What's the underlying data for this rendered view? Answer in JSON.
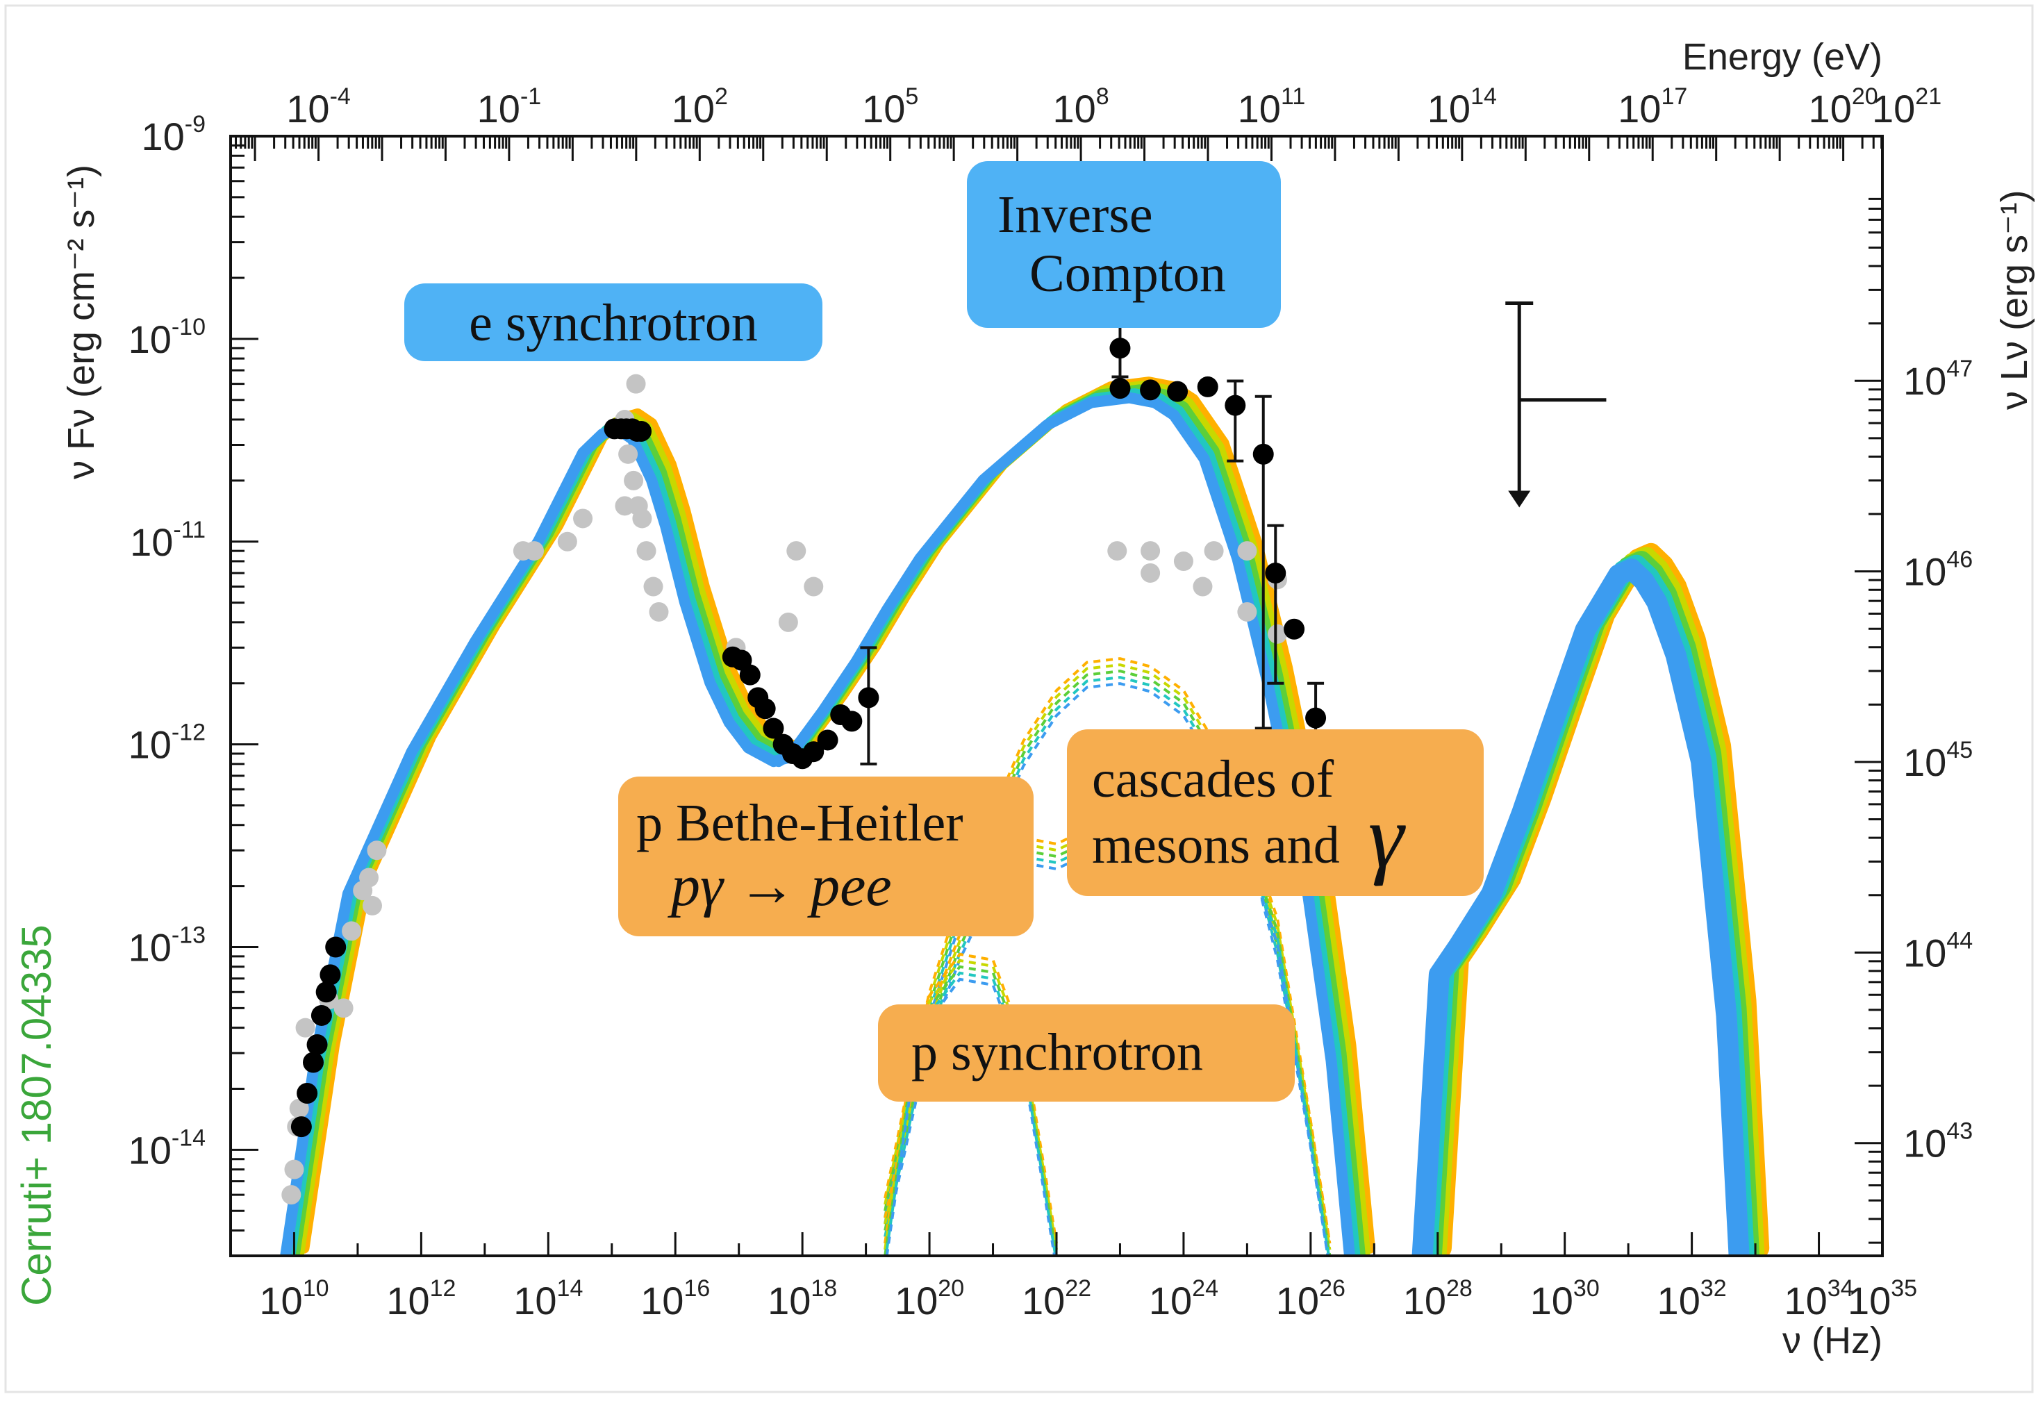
{
  "chart_data": {
    "type": "line",
    "x_scale": "log",
    "y_scale": "log",
    "xlim": [
      1000000000.0,
      1e+35
    ],
    "ylim": [
      3e-15,
      1e-09
    ],
    "xlabel": "ν (Hz)",
    "ylabel": "ν Fν (erg cm⁻² s⁻¹)",
    "top_axis_label": "Energy (eV)",
    "right_axis_label": "ν Lν (erg s⁻¹)",
    "x_ticks": [
      {
        "base": "10",
        "exp": "10",
        "value": 10000000000.0
      },
      {
        "base": "10",
        "exp": "12",
        "value": 1000000000000.0
      },
      {
        "base": "10",
        "exp": "14",
        "value": 100000000000000.0
      },
      {
        "base": "10",
        "exp": "16",
        "value": 1e+16
      },
      {
        "base": "10",
        "exp": "18",
        "value": 1e+18
      },
      {
        "base": "10",
        "exp": "20",
        "value": 1e+20
      },
      {
        "base": "10",
        "exp": "22",
        "value": 1e+22
      },
      {
        "base": "10",
        "exp": "24",
        "value": 1e+24
      },
      {
        "base": "10",
        "exp": "26",
        "value": 1e+26
      },
      {
        "base": "10",
        "exp": "28",
        "value": 1e+28
      },
      {
        "base": "10",
        "exp": "30",
        "value": 1e+30
      },
      {
        "base": "10",
        "exp": "32",
        "value": 1e+32
      },
      {
        "base": "10",
        "exp": "34",
        "value": 1e+34
      },
      {
        "base": "10",
        "exp": "35",
        "value": 1e+35
      }
    ],
    "y_ticks": [
      {
        "base": "10",
        "exp": "-14",
        "value": 1e-14
      },
      {
        "base": "10",
        "exp": "-13",
        "value": 1e-13
      },
      {
        "base": "10",
        "exp": "-12",
        "value": 1e-12
      },
      {
        "base": "10",
        "exp": "-11",
        "value": 1e-11
      },
      {
        "base": "10",
        "exp": "-10",
        "value": 1e-10
      },
      {
        "base": "10",
        "exp": "-9",
        "value": 1e-09
      }
    ],
    "top_ticks": [
      {
        "base": "10",
        "exp": "-4",
        "value": 0.0001
      },
      {
        "base": "10",
        "exp": "-1",
        "value": 0.1
      },
      {
        "base": "10",
        "exp": "2",
        "value": 100.0
      },
      {
        "base": "10",
        "exp": "5",
        "value": 100000.0
      },
      {
        "base": "10",
        "exp": "8",
        "value": 100000000.0
      },
      {
        "base": "10",
        "exp": "11",
        "value": 100000000000.0
      },
      {
        "base": "10",
        "exp": "14",
        "value": 100000000000000.0
      },
      {
        "base": "10",
        "exp": "17",
        "value": 1e+17
      },
      {
        "base": "10",
        "exp": "20",
        "value": 1e+20
      },
      {
        "base": "10",
        "exp": "21",
        "value": 1e+21
      }
    ],
    "right_ticks": [
      {
        "base": "10",
        "exp": "43",
        "value": 1e+43
      },
      {
        "base": "10",
        "exp": "44",
        "value": 1e+44
      },
      {
        "base": "10",
        "exp": "45",
        "value": 1e+45
      },
      {
        "base": "10",
        "exp": "46",
        "value": 1e+46
      },
      {
        "base": "10",
        "exp": "47",
        "value": 1e+47
      }
    ],
    "band_colors": [
      "#ffb000",
      "#c8d800",
      "#5ccf3a",
      "#22c7c0",
      "#3c9cf0"
    ],
    "marker_color_current": "#000000",
    "marker_color_archival": "#c4c4c4",
    "series": [
      {
        "kind": "band",
        "x": [
          10000000000.0,
          30000000000.0,
          100000000000.0,
          1000000000000.0,
          10000000000000.0,
          100000000000000.0,
          500000000000000.0,
          1000000000000000.0,
          1800000000000000.0,
          3000000000000000.0,
          6000000000000000.0,
          1e+16,
          2e+16,
          5e+16,
          1e+17,
          2e+17,
          5e+17,
          1e+18
        ],
        "y": [
          3e-15,
          3e-14,
          2e-13,
          1e-12,
          3.5e-12,
          1.1e-11,
          3e-11,
          3.7e-11,
          3.9e-11,
          3.5e-11,
          2.2e-11,
          1.3e-11,
          5.5e-12,
          2.2e-12,
          1.4e-12,
          1.05e-12,
          9e-13,
          9.5e-13
        ]
      },
      {
        "kind": "band",
        "x": [
          6e+17,
          1e+18,
          3e+18,
          1e+19,
          3e+19,
          1e+20,
          1e+21,
          1e+22,
          5e+22,
          2e+23,
          5e+23,
          1e+24,
          3e+24,
          1e+25,
          3e+25,
          1e+26,
          3e+26,
          6e+26
        ],
        "y": [
          9e-13,
          1e-12,
          1.6e-12,
          2.8e-12,
          5e-12,
          9e-12,
          2.2e-11,
          4.1e-11,
          5.3e-11,
          5.6e-11,
          5.3e-11,
          4.6e-11,
          2.8e-11,
          9e-12,
          2.2e-12,
          3.5e-13,
          3e-14,
          3e-15
        ]
      },
      {
        "kind": "band",
        "x": [
          8e+27,
          1.5e+28,
          3e+28,
          1e+29,
          3e+29,
          1e+30,
          3e+30,
          1e+31,
          1.6e+31,
          2.5e+31,
          4e+31,
          8e+31,
          2e+32,
          5e+32,
          8e+32
        ],
        "y": [
          3e-15,
          8e-14,
          1.1e-13,
          2e-13,
          5e-13,
          1.5e-12,
          4e-12,
          7.5e-12,
          8e-12,
          7e-12,
          5.5e-12,
          3e-12,
          9e-13,
          5e-14,
          3e-15
        ]
      },
      {
        "kind": "dotted",
        "x": [
          2e+19,
          5e+19,
          1e+20,
          3e+20,
          1e+21,
          3e+21,
          1e+22,
          3e+22,
          1e+23,
          3e+23,
          1e+24,
          3e+24,
          1e+25,
          3e+25,
          1e+26,
          2e+26
        ],
        "y": [
          5e-15,
          2e-14,
          5.2e-14,
          1.5e-13,
          4e-13,
          9e-13,
          1.6e-12,
          2.2e-12,
          2.3e-12,
          2.1e-12,
          1.6e-12,
          9e-13,
          3.8e-13,
          1e-13,
          1.2e-14,
          3e-15
        ]
      },
      {
        "kind": "dotted",
        "x": [
          2e+19,
          5e+19,
          1e+20,
          3e+20,
          1e+21,
          3e+21,
          1e+22,
          3e+22,
          1e+23,
          3e+23,
          1e+24,
          3e+24,
          1e+25,
          3e+25,
          1e+26,
          2e+26
        ],
        "y": [
          4e-15,
          1.5e-14,
          4e-14,
          1e-13,
          2.2e-13,
          3e-13,
          2.8e-13,
          3.3e-13,
          4.2e-13,
          5e-13,
          5.5e-13,
          5e-13,
          3.3e-13,
          1.2e-13,
          1.2e-14,
          3e-15
        ]
      },
      {
        "kind": "dotted",
        "x": [
          2e+19,
          5e+19,
          1e+20,
          3e+20,
          1e+21,
          3e+21,
          6e+21,
          1e+22
        ],
        "y": [
          3e-15,
          2.2e-14,
          5e-14,
          8e-14,
          7.5e-14,
          3e-14,
          8e-15,
          3e-15
        ]
      }
    ],
    "points_current": [
      {
        "x": 1100000000000000.0,
        "y": 3.6e-11
      },
      {
        "x": 1400000000000000.0,
        "y": 3.6e-11
      },
      {
        "x": 1700000000000000.0,
        "y": 3.6e-11
      },
      {
        "x": 2100000000000000.0,
        "y": 3.6e-11
      },
      {
        "x": 2500000000000000.0,
        "y": 3.5e-11
      },
      {
        "x": 2900000000000000.0,
        "y": 3.5e-11
      },
      {
        "x": 8e+16,
        "y": 2.7e-12
      },
      {
        "x": 1.1e+17,
        "y": 2.6e-12
      },
      {
        "x": 1.5e+17,
        "y": 2.2e-12
      },
      {
        "x": 2e+17,
        "y": 1.7e-12
      },
      {
        "x": 2.6e+17,
        "y": 1.5e-12
      },
      {
        "x": 3.5e+17,
        "y": 1.2e-12
      },
      {
        "x": 5e+17,
        "y": 1e-12
      },
      {
        "x": 7e+17,
        "y": 9e-13
      },
      {
        "x": 1e+18,
        "y": 8.5e-13
      },
      {
        "x": 1.5e+18,
        "y": 9.2e-13
      },
      {
        "x": 2.5e+18,
        "y": 1.05e-12
      },
      {
        "x": 4e+18,
        "y": 1.4e-12
      },
      {
        "x": 6e+18,
        "y": 1.3e-12
      },
      {
        "x": 1.1e+19,
        "y": 1.7e-12
      },
      {
        "x": 13000000000.0,
        "y": 1.3e-14
      },
      {
        "x": 16000000000.0,
        "y": 1.9e-14
      },
      {
        "x": 20000000000.0,
        "y": 2.7e-14
      },
      {
        "x": 23000000000.0,
        "y": 3.3e-14
      },
      {
        "x": 27000000000.0,
        "y": 4.6e-14
      },
      {
        "x": 32000000000.0,
        "y": 6e-14
      },
      {
        "x": 37000000000.0,
        "y": 7.3e-14
      },
      {
        "x": 45000000000.0,
        "y": 1e-13
      },
      {
        "x": 1e+23,
        "y": 9e-11
      },
      {
        "x": 1e+23,
        "y": 5.7e-11
      },
      {
        "x": 3e+23,
        "y": 5.6e-11
      },
      {
        "x": 8e+23,
        "y": 5.5e-11
      },
      {
        "x": 2.4e+24,
        "y": 5.8e-11
      },
      {
        "x": 6.5e+24,
        "y": 4.7e-11
      },
      {
        "x": 1.8e+25,
        "y": 2.7e-11
      },
      {
        "x": 2.8e+25,
        "y": 7e-12
      },
      {
        "x": 5.5e+25,
        "y": 3.7e-12
      },
      {
        "x": 1.2e+26,
        "y": 1.35e-12
      }
    ],
    "errorbars_current": [
      {
        "x": 1.1e+19,
        "ylo": 8e-13,
        "yhi": 3e-12
      },
      {
        "x": 1e+23,
        "ylo": 6.5e-11,
        "yhi": 1.2e-10
      },
      {
        "x": 6.5e+24,
        "ylo": 2.5e-11,
        "yhi": 6.2e-11
      },
      {
        "x": 1.8e+25,
        "ylo": 1.2e-12,
        "yhi": 5.2e-11
      },
      {
        "x": 2.8e+25,
        "ylo": 2e-12,
        "yhi": 1.2e-11
      },
      {
        "x": 1.2e+26,
        "ylo": 9e-13,
        "yhi": 2e-12
      }
    ],
    "upper_limit": {
      "x": 1e+29,
      "y": 5e-11,
      "ylo": 3e-11,
      "yhi": 1.5e-10,
      "xlo": 1e+29,
      "xhi": 4.5e+30
    },
    "points_archival": [
      {
        "x": 2400000000000000.0,
        "y": 6e-11
      },
      {
        "x": 1600000000000000.0,
        "y": 4e-11
      },
      {
        "x": 1800000000000000.0,
        "y": 2.7e-11
      },
      {
        "x": 2200000000000000.0,
        "y": 2e-11
      },
      {
        "x": 2600000000000000.0,
        "y": 1.5e-11
      },
      {
        "x": 3000000000000000.0,
        "y": 1.3e-11
      },
      {
        "x": 3500000000000000.0,
        "y": 9e-12
      },
      {
        "x": 4500000000000000.0,
        "y": 6e-12
      },
      {
        "x": 5500000000000000.0,
        "y": 4.5e-12
      },
      {
        "x": 1600000000000000.0,
        "y": 1.5e-11
      },
      {
        "x": 350000000000000.0,
        "y": 1.3e-11
      },
      {
        "x": 200000000000000.0,
        "y": 1e-11
      },
      {
        "x": 60000000000000.0,
        "y": 9e-12
      },
      {
        "x": 40000000000000.0,
        "y": 9e-12
      },
      {
        "x": 8e+17,
        "y": 9e-12
      },
      {
        "x": 6e+17,
        "y": 4e-12
      },
      {
        "x": 9e+16,
        "y": 3e-12
      },
      {
        "x": 1.5e+18,
        "y": 6e-12
      },
      {
        "x": 200000000000.0,
        "y": 3e-13
      },
      {
        "x": 150000000000.0,
        "y": 2.2e-13
      },
      {
        "x": 120000000000.0,
        "y": 1.9e-13
      },
      {
        "x": 170000000000.0,
        "y": 1.6e-13
      },
      {
        "x": 80000000000.0,
        "y": 1.2e-13
      },
      {
        "x": 60000000000.0,
        "y": 5e-14
      },
      {
        "x": 35000000000.0,
        "y": 5.5e-14
      },
      {
        "x": 15000000000.0,
        "y": 4e-14
      },
      {
        "x": 12000000000.0,
        "y": 1.6e-14
      },
      {
        "x": 10000000000.0,
        "y": 8e-15
      },
      {
        "x": 9000000000.0,
        "y": 6e-15
      },
      {
        "x": 11000000000.0,
        "y": 1.3e-14
      },
      {
        "x": 9e+22,
        "y": 9e-12
      },
      {
        "x": 3e+23,
        "y": 9e-12
      },
      {
        "x": 1e+24,
        "y": 8e-12
      },
      {
        "x": 3e+24,
        "y": 9e-12
      },
      {
        "x": 1e+25,
        "y": 9e-12
      },
      {
        "x": 3e+23,
        "y": 7e-12
      },
      {
        "x": 2e+24,
        "y": 6e-12
      },
      {
        "x": 1e+25,
        "y": 4.5e-12
      },
      {
        "x": 3e+25,
        "y": 3.5e-12
      },
      {
        "x": 3e+25,
        "y": 6.5e-12
      },
      {
        "x": 3e+18,
        "y": 2e-13
      },
      {
        "x": 8e+17,
        "y": 1.5e-13
      },
      {
        "x": 5e+17,
        "y": 2.5e-13
      }
    ]
  },
  "annotations": {
    "e_synchrotron": "e synchrotron",
    "inverse_compton_line1": "Inverse",
    "inverse_compton_line2": "Compton",
    "bethe_heitler_line1": "p Bethe-Heitler",
    "bethe_heitler_formula": "pγ → pee",
    "cascades_line1": "cascades of",
    "cascades_line2": "mesons and",
    "cascades_gamma": "γ",
    "p_synchrotron": "p synchrotron",
    "citation": "Cerruti+ 1807.04335",
    "blue_color": "#4fb2f5",
    "orange_color": "#f6ad4f",
    "citation_color": "#3aa63a"
  }
}
